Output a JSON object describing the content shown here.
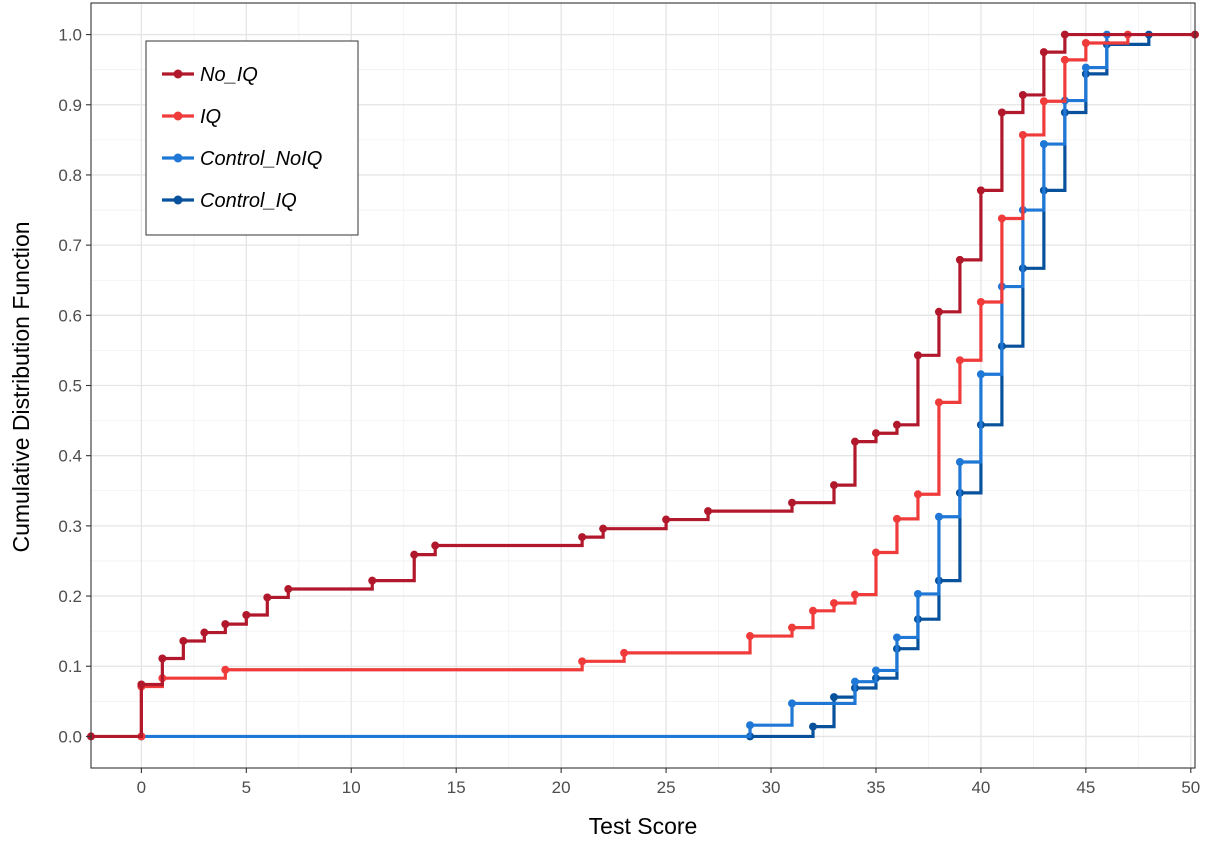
{
  "chart_data": {
    "type": "line",
    "subtype": "step-ecdf",
    "title": "",
    "xlabel": "Test Score",
    "ylabel": "Cumulative Distribution Function",
    "xlim": [
      -2.4,
      50.2
    ],
    "ylim": [
      -0.045,
      1.045
    ],
    "x_ticks": [
      0,
      5,
      10,
      15,
      20,
      25,
      30,
      35,
      40,
      45,
      50
    ],
    "y_ticks": [
      0.0,
      0.1,
      0.2,
      0.3,
      0.4,
      0.5,
      0.6,
      0.7,
      0.8,
      0.9,
      1.0
    ],
    "x_tick_labels": [
      "0",
      "5",
      "10",
      "15",
      "20",
      "25",
      "30",
      "35",
      "40",
      "45",
      "50"
    ],
    "y_tick_labels": [
      "0.0",
      "0.1",
      "0.2",
      "0.3",
      "0.4",
      "0.5",
      "0.6",
      "0.7",
      "0.8",
      "0.9",
      "1.0"
    ],
    "grid": true,
    "legend_position": "top-left",
    "series": [
      {
        "name": "No_IQ",
        "color": "#b2182b",
        "points": [
          [
            -2.4,
            0.0
          ],
          [
            0,
            0.074
          ],
          [
            1,
            0.111
          ],
          [
            2,
            0.136
          ],
          [
            3,
            0.148
          ],
          [
            4,
            0.16
          ],
          [
            5,
            0.173
          ],
          [
            6,
            0.198
          ],
          [
            7,
            0.21
          ],
          [
            11,
            0.222
          ],
          [
            13,
            0.259
          ],
          [
            14,
            0.272
          ],
          [
            21,
            0.284
          ],
          [
            22,
            0.296
          ],
          [
            25,
            0.309
          ],
          [
            27,
            0.321
          ],
          [
            31,
            0.333
          ],
          [
            33,
            0.358
          ],
          [
            34,
            0.42
          ],
          [
            35,
            0.432
          ],
          [
            36,
            0.444
          ],
          [
            37,
            0.543
          ],
          [
            38,
            0.605
          ],
          [
            39,
            0.679
          ],
          [
            40,
            0.778
          ],
          [
            41,
            0.889
          ],
          [
            42,
            0.914
          ],
          [
            43,
            0.975
          ],
          [
            44,
            1.0
          ],
          [
            50.2,
            1.0
          ]
        ]
      },
      {
        "name": "IQ",
        "color": "#f03b3b",
        "points": [
          [
            0,
            0.0
          ],
          [
            0,
            0.071
          ],
          [
            1,
            0.083
          ],
          [
            4,
            0.095
          ],
          [
            21,
            0.107
          ],
          [
            23,
            0.119
          ],
          [
            29,
            0.143
          ],
          [
            31,
            0.155
          ],
          [
            32,
            0.179
          ],
          [
            33,
            0.19
          ],
          [
            34,
            0.202
          ],
          [
            35,
            0.262
          ],
          [
            36,
            0.31
          ],
          [
            37,
            0.345
          ],
          [
            38,
            0.476
          ],
          [
            39,
            0.536
          ],
          [
            40,
            0.619
          ],
          [
            41,
            0.738
          ],
          [
            42,
            0.857
          ],
          [
            43,
            0.905
          ],
          [
            44,
            0.964
          ],
          [
            45,
            0.988
          ],
          [
            47,
            1.0
          ]
        ]
      },
      {
        "name": "Control_NoIQ",
        "color": "#1f78d6",
        "points": [
          [
            0,
            0.0
          ],
          [
            29,
            0.016
          ],
          [
            31,
            0.047
          ],
          [
            34,
            0.078
          ],
          [
            35,
            0.094
          ],
          [
            36,
            0.141
          ],
          [
            37,
            0.203
          ],
          [
            38,
            0.313
          ],
          [
            39,
            0.391
          ],
          [
            40,
            0.516
          ],
          [
            41,
            0.641
          ],
          [
            42,
            0.75
          ],
          [
            43,
            0.844
          ],
          [
            44,
            0.906
          ],
          [
            45,
            0.953
          ],
          [
            46,
            1.0
          ]
        ]
      },
      {
        "name": "Control_IQ",
        "color": "#08519c",
        "points": [
          [
            29,
            0.0
          ],
          [
            32,
            0.014
          ],
          [
            33,
            0.056
          ],
          [
            34,
            0.069
          ],
          [
            35,
            0.083
          ],
          [
            36,
            0.125
          ],
          [
            37,
            0.167
          ],
          [
            38,
            0.222
          ],
          [
            39,
            0.347
          ],
          [
            40,
            0.444
          ],
          [
            41,
            0.556
          ],
          [
            42,
            0.667
          ],
          [
            43,
            0.778
          ],
          [
            44,
            0.889
          ],
          [
            45,
            0.944
          ],
          [
            46,
            0.986
          ],
          [
            48,
            1.0
          ]
        ]
      }
    ]
  }
}
